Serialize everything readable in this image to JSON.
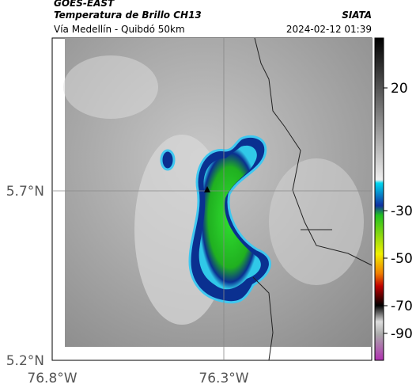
{
  "header": {
    "source": "GOES-EAST",
    "title": "Temperatura de Brillo CH13",
    "subtitle": "Vía Medellín - Quibdó 50km",
    "org": "SIATA",
    "datetime": "2024-02-12 01:39"
  },
  "lat_labels": [
    "5.7°N",
    "5.2°N"
  ],
  "lon_labels": [
    "76.8°W",
    "76.3°W"
  ],
  "colorbar_ticks": [
    20,
    -30,
    -50,
    -70,
    -90
  ]
}
